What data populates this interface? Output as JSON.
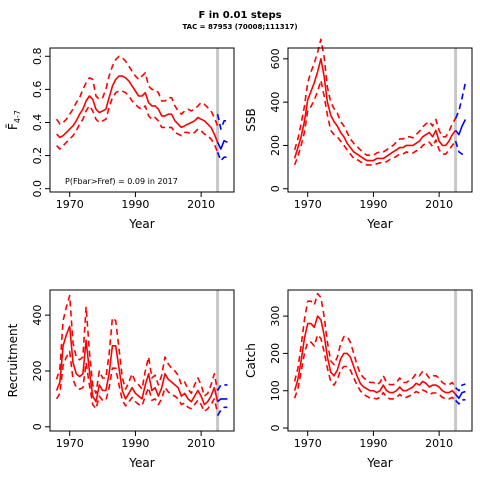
{
  "figure": {
    "title": "F in 0.01 steps",
    "subtitle": "TAC = 87953 (70008;111317)"
  },
  "chart_data": [
    {
      "type": "line",
      "panel": "fbar",
      "xlabel": "Year",
      "ylabel": "F̄",
      "ylabel_sub": "4-7",
      "xlim": [
        1964,
        2020
      ],
      "ylim": [
        -0.02,
        0.85
      ],
      "xticks": [
        1970,
        1990,
        2010
      ],
      "yticks": [
        0.0,
        0.2,
        0.4,
        0.6,
        0.8
      ],
      "ytick_labels": [
        "0.0",
        "0.2",
        "0.4",
        "0.6",
        "0.8"
      ],
      "vline": 2015,
      "annotation": "P(Fbar>Fref) = 0.09  in 2017",
      "hist_color": "#ff0000",
      "proj_color": "#0000ff",
      "hist_years": [
        1966,
        1967,
        1968,
        1969,
        1970,
        1971,
        1972,
        1973,
        1974,
        1975,
        1976,
        1977,
        1978,
        1979,
        1980,
        1981,
        1982,
        1983,
        1984,
        1985,
        1986,
        1987,
        1988,
        1989,
        1990,
        1991,
        1992,
        1993,
        1994,
        1995,
        1996,
        1997,
        1998,
        1999,
        2000,
        2001,
        2002,
        2003,
        2004,
        2005,
        2006,
        2007,
        2008,
        2009,
        2010,
        2011,
        2012,
        2013,
        2014,
        2015
      ],
      "hist_median": [
        0.33,
        0.31,
        0.32,
        0.34,
        0.36,
        0.38,
        0.41,
        0.45,
        0.48,
        0.53,
        0.56,
        0.54,
        0.48,
        0.46,
        0.47,
        0.48,
        0.55,
        0.62,
        0.66,
        0.68,
        0.68,
        0.67,
        0.65,
        0.62,
        0.59,
        0.56,
        0.56,
        0.58,
        0.52,
        0.5,
        0.5,
        0.48,
        0.44,
        0.44,
        0.45,
        0.45,
        0.41,
        0.39,
        0.37,
        0.38,
        0.39,
        0.4,
        0.41,
        0.43,
        0.42,
        0.41,
        0.39,
        0.37,
        0.33,
        0.28
      ],
      "hist_lower": [
        0.26,
        0.24,
        0.26,
        0.28,
        0.3,
        0.32,
        0.35,
        0.39,
        0.42,
        0.47,
        0.5,
        0.47,
        0.42,
        0.4,
        0.41,
        0.42,
        0.49,
        0.55,
        0.58,
        0.59,
        0.59,
        0.58,
        0.56,
        0.53,
        0.51,
        0.49,
        0.48,
        0.5,
        0.44,
        0.42,
        0.43,
        0.41,
        0.37,
        0.37,
        0.37,
        0.37,
        0.34,
        0.33,
        0.32,
        0.34,
        0.34,
        0.33,
        0.34,
        0.36,
        0.35,
        0.33,
        0.32,
        0.3,
        0.27,
        0.22
      ],
      "hist_upper": [
        0.42,
        0.39,
        0.4,
        0.42,
        0.45,
        0.48,
        0.52,
        0.55,
        0.6,
        0.64,
        0.67,
        0.66,
        0.56,
        0.54,
        0.55,
        0.6,
        0.68,
        0.74,
        0.78,
        0.8,
        0.79,
        0.77,
        0.74,
        0.71,
        0.68,
        0.66,
        0.68,
        0.7,
        0.62,
        0.6,
        0.6,
        0.58,
        0.53,
        0.53,
        0.55,
        0.55,
        0.5,
        0.47,
        0.45,
        0.47,
        0.48,
        0.47,
        0.48,
        0.5,
        0.52,
        0.51,
        0.49,
        0.47,
        0.43,
        0.38
      ],
      "proj_years": [
        2015,
        2016,
        2017,
        2018
      ],
      "proj_median": [
        0.28,
        0.24,
        0.29,
        0.28
      ],
      "proj_lower": [
        0.22,
        0.17,
        0.19,
        0.19
      ],
      "proj_upper": [
        0.45,
        0.36,
        0.41,
        0.41
      ]
    },
    {
      "type": "line",
      "panel": "ssb",
      "xlabel": "Year",
      "ylabel": "SSB",
      "xlim": [
        1964,
        2020
      ],
      "ylim": [
        -15,
        650
      ],
      "xticks": [
        1970,
        1990,
        2010
      ],
      "yticks": [
        0,
        200,
        400,
        600
      ],
      "ytick_labels": [
        "0",
        "200",
        "400",
        "600"
      ],
      "vline": 2015,
      "annotation": "",
      "hist_color": "#ff0000",
      "proj_color": "#0000ff",
      "hist_years": [
        1966,
        1967,
        1968,
        1969,
        1970,
        1971,
        1972,
        1973,
        1974,
        1975,
        1976,
        1977,
        1978,
        1979,
        1980,
        1981,
        1982,
        1983,
        1984,
        1985,
        1986,
        1987,
        1988,
        1989,
        1990,
        1991,
        1992,
        1993,
        1994,
        1995,
        1996,
        1997,
        1998,
        1999,
        2000,
        2001,
        2002,
        2003,
        2004,
        2005,
        2006,
        2007,
        2008,
        2009,
        2010,
        2011,
        2012,
        2013,
        2014,
        2015
      ],
      "hist_median": [
        140,
        190,
        240,
        310,
        410,
        450,
        490,
        540,
        600,
        520,
        400,
        340,
        310,
        290,
        260,
        240,
        210,
        190,
        170,
        160,
        150,
        140,
        130,
        130,
        130,
        140,
        140,
        140,
        150,
        160,
        170,
        180,
        190,
        190,
        200,
        200,
        200,
        210,
        220,
        240,
        250,
        260,
        240,
        270,
        220,
        200,
        200,
        220,
        250,
        270
      ],
      "hist_lower": [
        110,
        150,
        200,
        260,
        360,
        380,
        410,
        450,
        500,
        430,
        340,
        270,
        250,
        240,
        220,
        200,
        180,
        160,
        140,
        135,
        125,
        115,
        110,
        110,
        110,
        115,
        120,
        120,
        125,
        135,
        140,
        150,
        160,
        160,
        170,
        165,
        165,
        175,
        180,
        200,
        210,
        215,
        195,
        225,
        180,
        160,
        160,
        180,
        200,
        220
      ],
      "hist_upper": [
        180,
        230,
        300,
        380,
        490,
        540,
        580,
        630,
        690,
        610,
        470,
        400,
        370,
        350,
        310,
        290,
        260,
        230,
        210,
        195,
        180,
        165,
        155,
        155,
        155,
        165,
        170,
        170,
        180,
        190,
        200,
        215,
        230,
        230,
        240,
        240,
        235,
        250,
        265,
        285,
        300,
        310,
        290,
        320,
        270,
        240,
        240,
        265,
        300,
        325
      ],
      "proj_years": [
        2015,
        2016,
        2017,
        2018
      ],
      "proj_median": [
        270,
        250,
        290,
        320
      ],
      "proj_lower": [
        220,
        170,
        160,
        160
      ],
      "proj_upper": [
        325,
        360,
        420,
        490
      ]
    },
    {
      "type": "line",
      "panel": "recruitment",
      "xlabel": "Year",
      "ylabel": "Recruitment",
      "xlim": [
        1964,
        2020
      ],
      "ylim": [
        -15,
        490
      ],
      "xticks": [
        1970,
        1990,
        2010
      ],
      "yticks": [
        0,
        200,
        400
      ],
      "ytick_labels": [
        "0",
        "200",
        "400"
      ],
      "vline": 2015,
      "annotation": "",
      "hist_color": "#ff0000",
      "proj_color": "#0000ff",
      "hist_years": [
        1966,
        1967,
        1968,
        1969,
        1970,
        1971,
        1972,
        1973,
        1974,
        1975,
        1976,
        1977,
        1978,
        1979,
        1980,
        1981,
        1982,
        1983,
        1984,
        1985,
        1986,
        1987,
        1988,
        1989,
        1990,
        1991,
        1992,
        1993,
        1994,
        1995,
        1996,
        1997,
        1998,
        1999,
        2000,
        2001,
        2002,
        2003,
        2004,
        2005,
        2006,
        2007,
        2008,
        2009,
        2010,
        2011,
        2012,
        2013,
        2014,
        2015
      ],
      "hist_median": [
        130,
        160,
        290,
        330,
        360,
        230,
        190,
        180,
        190,
        310,
        200,
        110,
        90,
        150,
        130,
        130,
        190,
        290,
        290,
        210,
        130,
        100,
        120,
        140,
        120,
        110,
        100,
        150,
        190,
        130,
        140,
        110,
        140,
        190,
        170,
        160,
        150,
        140,
        110,
        120,
        100,
        90,
        110,
        130,
        110,
        80,
        90,
        110,
        140,
        90
      ],
      "hist_lower": [
        100,
        120,
        220,
        250,
        270,
        170,
        140,
        135,
        140,
        230,
        150,
        80,
        65,
        110,
        95,
        95,
        140,
        210,
        210,
        150,
        95,
        75,
        90,
        105,
        90,
        80,
        75,
        110,
        140,
        95,
        100,
        80,
        100,
        140,
        125,
        115,
        110,
        100,
        80,
        85,
        70,
        65,
        80,
        95,
        80,
        55,
        65,
        80,
        100,
        50
      ],
      "hist_upper": [
        170,
        210,
        380,
        430,
        470,
        300,
        250,
        240,
        250,
        430,
        270,
        150,
        120,
        200,
        175,
        175,
        260,
        390,
        380,
        280,
        175,
        135,
        160,
        190,
        160,
        150,
        135,
        200,
        250,
        175,
        185,
        150,
        185,
        250,
        225,
        210,
        200,
        185,
        150,
        160,
        135,
        120,
        150,
        175,
        150,
        110,
        120,
        150,
        190,
        130
      ],
      "proj_years": [
        2015,
        2016,
        2017,
        2018
      ],
      "proj_median": [
        90,
        100,
        100,
        100
      ],
      "proj_lower": [
        40,
        60,
        70,
        70
      ],
      "proj_upper": [
        130,
        150,
        150,
        150
      ]
    },
    {
      "type": "line",
      "panel": "catch",
      "xlabel": "Year",
      "ylabel": "Catch",
      "xlim": [
        1964,
        2020
      ],
      "ylim": [
        -8,
        370
      ],
      "xticks": [
        1970,
        1990,
        2010
      ],
      "yticks": [
        0,
        100,
        200,
        300
      ],
      "ytick_labels": [
        "0",
        "100",
        "200",
        "300"
      ],
      "vline": 2015,
      "annotation": "",
      "hist_color": "#ff0000",
      "proj_color": "#0000ff",
      "hist_years": [
        1966,
        1967,
        1968,
        1969,
        1970,
        1971,
        1972,
        1973,
        1974,
        1975,
        1976,
        1977,
        1978,
        1979,
        1980,
        1981,
        1982,
        1983,
        1984,
        1985,
        1986,
        1987,
        1988,
        1989,
        1990,
        1991,
        1992,
        1993,
        1994,
        1995,
        1996,
        1997,
        1998,
        1999,
        2000,
        2001,
        2002,
        2003,
        2004,
        2005,
        2006,
        2007,
        2008,
        2009,
        2010,
        2011,
        2012,
        2013,
        2014,
        2015
      ],
      "hist_median": [
        100,
        130,
        180,
        240,
        280,
        280,
        270,
        300,
        290,
        250,
        190,
        150,
        140,
        155,
        185,
        200,
        200,
        190,
        165,
        140,
        120,
        110,
        105,
        100,
        100,
        95,
        100,
        115,
        100,
        95,
        95,
        100,
        110,
        100,
        100,
        105,
        110,
        120,
        115,
        125,
        120,
        110,
        115,
        115,
        110,
        100,
        95,
        95,
        100,
        90
      ],
      "hist_lower": [
        80,
        105,
        150,
        200,
        230,
        230,
        220,
        250,
        240,
        205,
        160,
        125,
        115,
        130,
        155,
        165,
        165,
        155,
        135,
        115,
        100,
        90,
        85,
        80,
        80,
        78,
        82,
        95,
        82,
        78,
        78,
        82,
        90,
        82,
        82,
        86,
        90,
        98,
        94,
        102,
        98,
        90,
        94,
        94,
        90,
        82,
        78,
        78,
        82,
        74
      ],
      "hist_upper": [
        125,
        160,
        220,
        290,
        340,
        340,
        330,
        360,
        350,
        300,
        230,
        180,
        170,
        190,
        225,
        245,
        245,
        230,
        200,
        170,
        145,
        135,
        128,
        122,
        122,
        116,
        122,
        140,
        122,
        116,
        116,
        122,
        134,
        122,
        122,
        128,
        134,
        146,
        140,
        152,
        146,
        134,
        140,
        140,
        134,
        122,
        116,
        116,
        122,
        108
      ],
      "proj_years": [
        2015,
        2016,
        2017,
        2018
      ],
      "proj_median": [
        90,
        80,
        95,
        98
      ],
      "proj_lower": [
        74,
        65,
        75,
        76
      ],
      "proj_upper": [
        108,
        100,
        115,
        118
      ]
    }
  ]
}
